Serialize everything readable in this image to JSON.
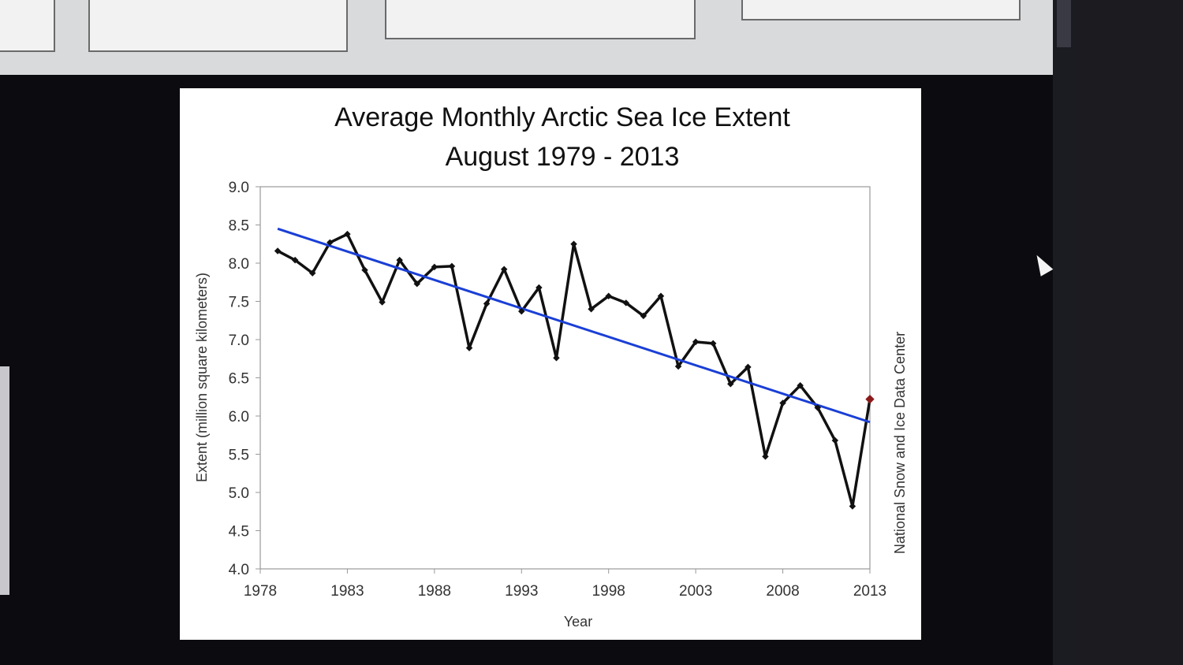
{
  "chart_data": {
    "type": "line",
    "title": "Average Monthly Arctic Sea Ice Extent",
    "subtitle": "August 1979 - 2013",
    "xlabel": "Year",
    "ylabel": "Extent (million square kilometers)",
    "source": "National Snow and Ice Data Center",
    "xlim": [
      1978,
      2013
    ],
    "ylim": [
      4.0,
      9.0
    ],
    "x_ticks": [
      "1978",
      "1983",
      "1988",
      "1993",
      "1998",
      "2003",
      "2008",
      "2013"
    ],
    "y_ticks": [
      "4.0",
      "4.5",
      "5.0",
      "5.5",
      "6.0",
      "6.5",
      "7.0",
      "7.5",
      "8.0",
      "8.5",
      "9.0"
    ],
    "grid": false,
    "series": [
      {
        "color": "#111111",
        "x": [
          1979,
          1980,
          1981,
          1982,
          1983,
          1984,
          1985,
          1986,
          1987,
          1988,
          1989,
          1990,
          1991,
          1992,
          1993,
          1994,
          1995,
          1996,
          1997,
          1998,
          1999,
          2000,
          2001,
          2002,
          2003,
          2004,
          2005,
          2006,
          2007,
          2008,
          2009,
          2010,
          2011,
          2012,
          2013
        ],
        "values": [
          8.16,
          8.04,
          7.87,
          8.27,
          8.38,
          7.91,
          7.49,
          8.04,
          7.73,
          7.95,
          7.96,
          6.89,
          7.47,
          7.92,
          7.37,
          7.68,
          6.76,
          8.25,
          7.4,
          7.57,
          7.48,
          7.31,
          7.57,
          6.65,
          6.97,
          6.95,
          6.42,
          6.64,
          5.47,
          6.17,
          6.4,
          6.11,
          5.68,
          4.82,
          6.22
        ]
      },
      {
        "kind": "trend",
        "color": "#1a3fd6",
        "x": [
          1979,
          2013
        ],
        "values": [
          8.45,
          5.92
        ]
      }
    ],
    "highlight": {
      "x": 2013,
      "color": "#8b1a1a"
    }
  }
}
